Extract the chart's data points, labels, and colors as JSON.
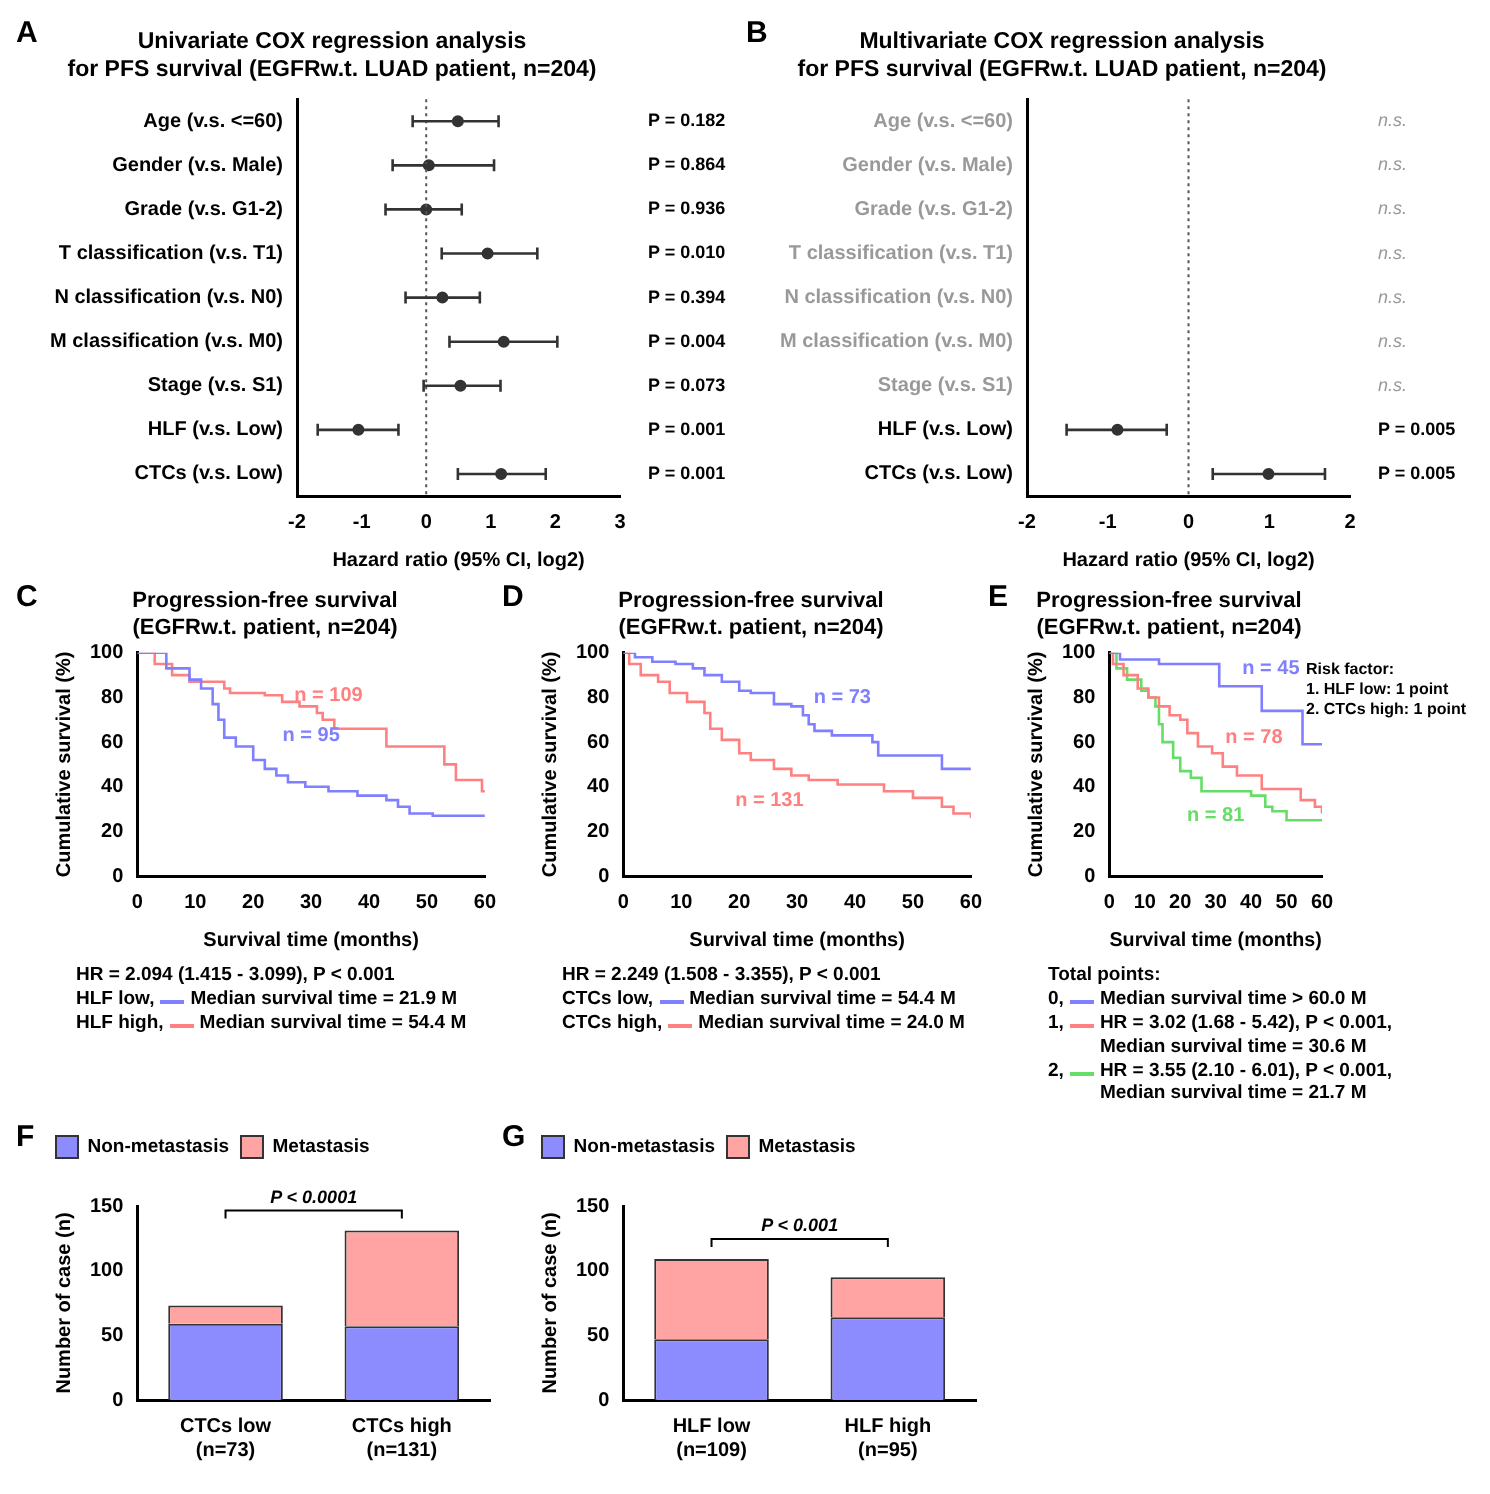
{
  "chart_data": [
    {
      "type": "scatter",
      "orientation": "horizontal",
      "marker": "circle",
      "title": "Univariate COX regression analysis\nfor PFS survival (EGFRw.t. LUAD patient, n=204)",
      "xlabel": "Hazard ratio (95% CI, log2)",
      "categories": [
        "Age (v.s. <=60)",
        "Gender (v.s. Male)",
        "Grade (v.s. G1-2)",
        "T classification (v.s. T1)",
        "N classification (v.s. N0)",
        "M classification (v.s. M0)",
        "Stage (v.s. S1)",
        "HLF (v.s. Low)",
        "CTCs (v.s. Low)"
      ],
      "values": [
        0.49,
        0.04,
        0.0,
        0.95,
        0.25,
        1.2,
        0.53,
        -1.05,
        1.16
      ],
      "errors": [
        [
          -0.21,
          1.12
        ],
        [
          -0.52,
          1.05
        ],
        [
          -0.63,
          0.55
        ],
        [
          0.24,
          1.72
        ],
        [
          -0.32,
          0.83
        ],
        [
          0.36,
          2.03
        ],
        [
          -0.04,
          1.15
        ],
        [
          -1.68,
          -0.43
        ],
        [
          0.49,
          1.85
        ]
      ],
      "xlim": [
        -2,
        3
      ],
      "xticks": [
        -2,
        -1,
        0,
        1,
        2,
        3
      ],
      "ref_lines": [
        {
          "axis": "x",
          "value": 0,
          "line_style": "dotted",
          "color": "#555555"
        }
      ],
      "annotations": [
        "A",
        "P = 0.182",
        "P = 0.864",
        "P = 0.936",
        "P = 0.010",
        "P = 0.394",
        "P = 0.004",
        "P = 0.073",
        "P = 0.001",
        "P = 0.001"
      ]
    },
    {
      "type": "scatter",
      "orientation": "horizontal",
      "marker": "circle",
      "title": "Multivariate COX regression analysis\nfor PFS survival (EGFRw.t. LUAD patient, n=204)",
      "xlabel": "Hazard ratio (95% CI, log2)",
      "categories": [
        "Age (v.s. <=60)",
        "Gender (v.s. Male)",
        "Grade (v.s. G1-2)",
        "T classification (v.s. T1)",
        "N classification (v.s. N0)",
        "M classification (v.s. M0)",
        "Stage (v.s. S1)",
        "HLF (v.s. Low)",
        "CTCs (v.s. Low)"
      ],
      "values": [
        null,
        null,
        null,
        null,
        null,
        null,
        null,
        -0.88,
        0.99
      ],
      "errors": [
        null,
        null,
        null,
        null,
        null,
        null,
        null,
        [
          -1.51,
          -0.27
        ],
        [
          0.3,
          1.69
        ]
      ],
      "xlim": [
        -2,
        2
      ],
      "xticks": [
        -2,
        -1,
        0,
        1,
        2
      ],
      "ref_lines": [
        {
          "axis": "x",
          "value": 0,
          "line_style": "dotted",
          "color": "#555555"
        }
      ],
      "annotations": [
        "B",
        "n.s.",
        "n.s.",
        "n.s.",
        "n.s.",
        "n.s.",
        "n.s.",
        "n.s.",
        "P = 0.005",
        "P = 0.005"
      ]
    },
    {
      "type": "step",
      "title": "Progression-free survival\n(EGFRw.t. patient, n=204)",
      "xlabel": "Survival time (months)",
      "ylabel": "Cumulative survival (%)",
      "marker": "none",
      "legend": "bottom",
      "xlim": [
        0,
        60
      ],
      "xticks": [
        0,
        10,
        20,
        30,
        40,
        50,
        60
      ],
      "ylim": [
        0,
        100
      ],
      "yticks": [
        0,
        20,
        40,
        60,
        80,
        100
      ],
      "series": [
        {
          "name": "HLF low,",
          "color": "#7f7fff",
          "x": [
            0,
            5,
            9,
            11,
            13,
            14,
            15,
            17,
            20,
            22,
            24,
            26,
            29,
            33,
            38,
            43,
            45,
            47,
            51,
            60
          ],
          "values": [
            100,
            93,
            88,
            84,
            77,
            70,
            62,
            58,
            52,
            48,
            45,
            42,
            40,
            38,
            36,
            34,
            31,
            28,
            27,
            27
          ]
        },
        {
          "name": "HLF high,",
          "color": "#ff8080",
          "x": [
            0,
            3,
            6,
            9,
            15,
            16,
            22,
            25,
            28,
            31,
            32,
            34,
            43,
            53,
            55,
            59.5,
            60
          ],
          "values": [
            100,
            95,
            90,
            87,
            84,
            82,
            81,
            78,
            76,
            73,
            70,
            66,
            58,
            50,
            43,
            38,
            38
          ]
        }
      ],
      "annotations": [
        "C",
        "n = 95",
        "n = 109",
        "HR = 2.094 (1.415 - 3.099), P < 0.001",
        "Median survival time = 21.9 M",
        "Median survival time = 54.4 M"
      ]
    },
    {
      "type": "step",
      "title": "Progression-free survival\n(EGFRw.t. patient, n=204)",
      "xlabel": "Survival time (months)",
      "ylabel": "Cumulative survival (%)",
      "marker": "none",
      "legend": "bottom",
      "xlim": [
        0,
        60
      ],
      "xticks": [
        0,
        10,
        20,
        30,
        40,
        50,
        60
      ],
      "ylim": [
        0,
        100
      ],
      "yticks": [
        0,
        20,
        40,
        60,
        80,
        100
      ],
      "series": [
        {
          "name": "CTCs low,",
          "color": "#7f7fff",
          "x": [
            0,
            2,
            5,
            9,
            12,
            14,
            17,
            20,
            22,
            26,
            29,
            31,
            32,
            33,
            36,
            43,
            44,
            55,
            60
          ],
          "values": [
            100,
            98,
            96,
            95,
            93,
            90,
            87,
            83,
            82,
            77,
            76,
            72,
            68,
            65,
            63,
            60,
            54,
            48,
            48
          ]
        },
        {
          "name": "CTCs high,",
          "color": "#ff8080",
          "x": [
            0,
            1,
            3,
            6,
            8,
            11,
            14,
            15,
            17,
            20,
            22,
            26,
            29,
            32,
            37,
            45,
            50,
            55,
            57,
            60
          ],
          "values": [
            100,
            95,
            90,
            87,
            82,
            78,
            73,
            66,
            61,
            55,
            52,
            48,
            45,
            43,
            41,
            38,
            35,
            31,
            28,
            26
          ]
        }
      ],
      "annotations": [
        "D",
        "n = 73",
        "n = 131",
        "HR = 2.249 (1.508 - 3.355), P < 0.001",
        "Median survival time = 54.4 M",
        "Median survival time = 24.0 M"
      ]
    },
    {
      "type": "step",
      "title": "Progression-free survival\n(EGFRw.t. patient, n=204)",
      "xlabel": "Survival time (months)",
      "ylabel": "Cumulative survival (%)",
      "marker": "none",
      "legend": "bottom",
      "legend_title": "Total points:",
      "xlim": [
        0,
        60
      ],
      "xticks": [
        0,
        10,
        20,
        30,
        40,
        50,
        60
      ],
      "ylim": [
        0,
        100
      ],
      "yticks": [
        0,
        20,
        40,
        60,
        80,
        100
      ],
      "series": [
        {
          "name": "0,",
          "color": "#7f7fff",
          "x": [
            0,
            3,
            14,
            31,
            43,
            54.5,
            60
          ],
          "values": [
            100,
            97,
            95,
            85,
            74,
            59,
            59
          ]
        },
        {
          "name": "1,",
          "color": "#ff8080",
          "x": [
            0,
            1,
            4,
            8,
            11,
            14,
            17,
            20,
            22,
            25,
            29,
            32,
            36,
            43,
            54,
            58,
            60
          ],
          "values": [
            100,
            95,
            90,
            84,
            80,
            76,
            72,
            70,
            64,
            58,
            55,
            49,
            45,
            39,
            34,
            31,
            28
          ]
        },
        {
          "name": "2,",
          "color": "#66dd66",
          "x": [
            0,
            2,
            5,
            9,
            11,
            13,
            14,
            15,
            18,
            20,
            23,
            26,
            40,
            44,
            46,
            50,
            60
          ],
          "values": [
            100,
            93,
            88,
            83,
            80,
            76,
            68,
            60,
            53,
            47,
            44,
            38,
            36,
            31,
            29,
            25,
            25
          ]
        }
      ],
      "annotations": [
        "E",
        "n = 45",
        "n = 78",
        "n = 81",
        "Risk factor:\n1. HLF low: 1 point\n2. CTCs high: 1 point",
        "Median survival time > 60.0 M",
        "HR = 3.02 (1.68 - 5.42), P < 0.001,\nMedian survival time = 30.6 M",
        "HR = 3.55 (2.10 - 6.01), P < 0.001,\nMedian survival time = 21.7 M"
      ]
    },
    {
      "type": "bar",
      "stacked": true,
      "ylabel": "Number of case (n)",
      "legend": "top",
      "categories": [
        "CTCs low\n(n=73)",
        "CTCs high\n(n=131)"
      ],
      "ylim": [
        0,
        150
      ],
      "yticks": [
        0,
        50,
        100,
        150
      ],
      "series": [
        {
          "name": "Non-metastasis",
          "color": "#8c8cff",
          "values": [
            59,
            57
          ]
        },
        {
          "name": "Metastasis",
          "color": "#ffa3a3",
          "values": [
            14,
            74
          ]
        }
      ],
      "annotations": [
        "F",
        "P < 0.0001"
      ]
    },
    {
      "type": "bar",
      "stacked": true,
      "ylabel": "Number of case (n)",
      "legend": "top",
      "categories": [
        "HLF low\n(n=109)",
        "HLF high\n(n=95)"
      ],
      "ylim": [
        0,
        150
      ],
      "yticks": [
        0,
        50,
        100,
        150
      ],
      "series": [
        {
          "name": "Non-metastasis",
          "color": "#8c8cff",
          "values": [
            47,
            64
          ]
        },
        {
          "name": "Metastasis",
          "color": "#ffa3a3",
          "values": [
            62,
            31
          ]
        }
      ],
      "annotations": [
        "G",
        "P < 0.001"
      ]
    }
  ]
}
